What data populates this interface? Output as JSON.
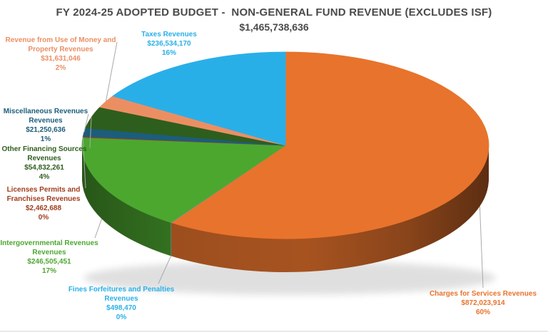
{
  "chart_data": {
    "type": "pie",
    "style": "3d",
    "title": "FY 2024-25 ADOPTED BUDGET -  NON-GENERAL FUND REVENUE (EXCLUDES ISF)",
    "total_label": "$1,465,738,636",
    "total": 1465738636,
    "start_angle_deg": 0,
    "direction": "clockwise",
    "legend_position": "callout-labels",
    "background": "#FFFFFF",
    "title_color": "#4A4A4A",
    "leader_line_color": "#A9A9A9",
    "slices": [
      {
        "id": "charges",
        "label_lines": [
          "Charges for Services Revenues"
        ],
        "value": 872023914,
        "value_text": "$872,023,914",
        "pct_text": "60%",
        "color": "#E8732C"
      },
      {
        "id": "fines",
        "label_lines": [
          "Fines Forfeitures and Penalties",
          "Revenues"
        ],
        "value": 498470,
        "value_text": "$498,470",
        "pct_text": "0%",
        "color": "#2BB0E8"
      },
      {
        "id": "intergov",
        "label_lines": [
          "Intergovernmental Revenues",
          "Revenues"
        ],
        "value": 246505451,
        "value_text": "$246,505,451",
        "pct_text": "17%",
        "color": "#4CA72F"
      },
      {
        "id": "licenses",
        "label_lines": [
          "Licenses Permits and",
          "Franchises Revenues"
        ],
        "value": 2462688,
        "value_text": "$2,462,688",
        "pct_text": "0%",
        "color": "#A03E1E"
      },
      {
        "id": "misc",
        "label_lines": [
          "Miscellaneous Revenues",
          "Revenues"
        ],
        "value": 21250636,
        "value_text": "$21,250,636",
        "pct_text": "1%",
        "color": "#1C5D7C"
      },
      {
        "id": "otherfin",
        "label_lines": [
          "Other Financing Sources",
          "Revenues"
        ],
        "value": 54832261,
        "value_text": "$54,832,261",
        "pct_text": "4%",
        "color": "#2E5E1D"
      },
      {
        "id": "money",
        "label_lines": [
          "Revenue from Use of Money and",
          "Property Revenues"
        ],
        "value": 31631046,
        "value_text": "$31,631,046",
        "pct_text": "2%",
        "color": "#EB8F63"
      },
      {
        "id": "taxes",
        "label_lines": [
          "Taxes Revenues"
        ],
        "value": 236534170,
        "value_text": "$236,534,170",
        "pct_text": "16%",
        "color": "#29AFE8"
      }
    ]
  }
}
